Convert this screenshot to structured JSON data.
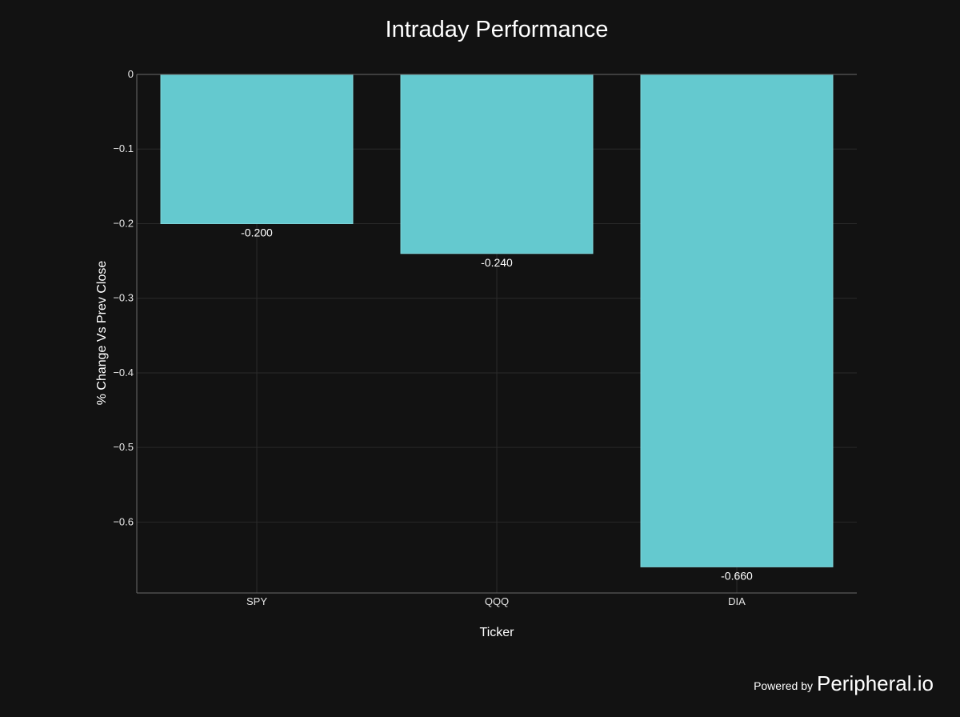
{
  "chart_data": {
    "type": "bar",
    "title": "Intraday Performance",
    "xlabel": "Ticker",
    "ylabel": "% Change Vs Prev Close",
    "categories": [
      "SPY",
      "QQQ",
      "DIA"
    ],
    "values": [
      -0.2,
      -0.24,
      -0.66
    ],
    "data_labels": [
      "-0.200",
      "-0.240",
      "-0.660"
    ],
    "ylim": [
      -0.695,
      0
    ],
    "yticks": [
      0,
      -0.1,
      -0.2,
      -0.3,
      -0.4,
      -0.5,
      -0.6
    ],
    "ytick_labels": [
      "0",
      "−0.1",
      "−0.2",
      "−0.3",
      "−0.4",
      "−0.5",
      "−0.6"
    ],
    "grid": true,
    "bar_color": "#64c9cf",
    "background_color": "#121212",
    "grid_color": "#2a2a2a"
  },
  "footer": {
    "powered_by": "Powered by",
    "brand": "Peripheral.io"
  }
}
